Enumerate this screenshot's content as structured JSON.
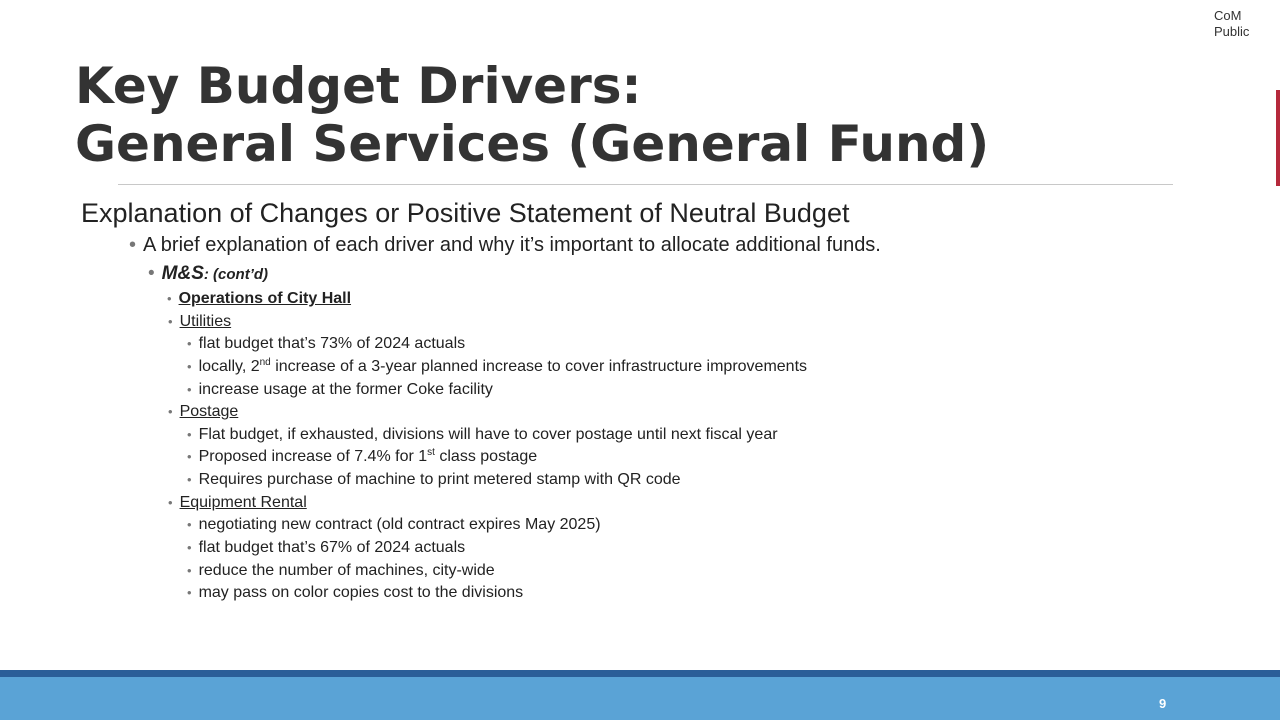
{
  "classification": {
    "line1": "CoM",
    "line2": "Public"
  },
  "title": {
    "line1": "Key Budget Drivers:",
    "line2": "General Services (General Fund)"
  },
  "heading": "Explanation of Changes or Positive Statement of Neutral Budget",
  "intro": "A brief explanation of each driver and why it’s important to allocate additional funds.",
  "category": {
    "label": "M&S",
    "suffix": ": (cont’d)"
  },
  "section": "Operations of City Hall",
  "groups": {
    "utilities": {
      "label": "Utilities",
      "item1": "flat budget that’s 73% of 2024 actuals",
      "item2_pre": "locally, 2",
      "item2_sup": "nd",
      "item2_post": " increase of a 3-year planned increase to cover infrastructure improvements",
      "item3": "increase usage at the former Coke facility"
    },
    "postage": {
      "label": "Postage",
      "item1": "Flat budget, if exhausted, divisions will have to cover postage until next fiscal year",
      "item2_pre": "Proposed increase of 7.4% for 1",
      "item2_sup": "st",
      "item2_post": " class postage",
      "item3": "Requires purchase of machine to print metered stamp with QR code"
    },
    "equipment": {
      "label": "Equipment Rental",
      "item1": "negotiating new contract (old contract expires May 2025)",
      "item2": "flat budget that’s 67% of 2024 actuals",
      "item3": "reduce the number of machines, city-wide",
      "item4": "may pass on color copies cost to the divisions"
    }
  },
  "footer": {
    "page_number": "9"
  },
  "colors": {
    "footer_bar": "#5aa3d6",
    "footer_line": "#2b5e98",
    "accent": "#b5293b"
  }
}
